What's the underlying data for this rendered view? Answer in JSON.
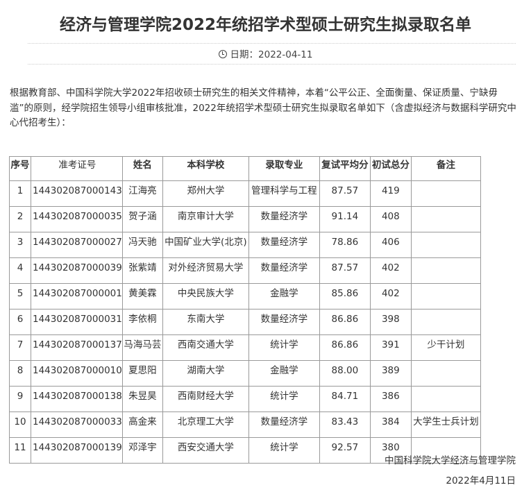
{
  "title": "经济与管理学院2022年统招学术型硕士研究生拟录取名单",
  "date_label": "日期：",
  "date": "2022-04-11",
  "intro": "根据教育部、中国科学院大学2022年招收硕士研究生的相关文件精神，本着“公平公正、全面衡量、保证质量、宁缺毋滥”的原则，经学院招生领导小组审核批准，2022年统招学术型硕士研究生拟录取名单如下（含虚拟经济与数据科学研究中心代招考生）：",
  "table": {
    "headers": [
      "序号",
      "准考证号",
      "姓名",
      "本科学校",
      "录取专业",
      "复试平均分",
      "初试总分",
      "备注"
    ],
    "rows": [
      [
        "1",
        "144302087000143",
        "江海亮",
        "郑州大学",
        "管理科学与工程",
        "87.57",
        "419",
        ""
      ],
      [
        "2",
        "144302087000035",
        "贺子涵",
        "南京审计大学",
        "数量经济学",
        "91.14",
        "408",
        ""
      ],
      [
        "3",
        "144302087000027",
        "冯天驰",
        "中国矿业大学(北京)",
        "数量经济学",
        "78.86",
        "406",
        ""
      ],
      [
        "4",
        "144302087000039",
        "张紫靖",
        "对外经济贸易大学",
        "数量经济学",
        "87.57",
        "402",
        ""
      ],
      [
        "5",
        "144302087000001",
        "黄美霖",
        "中央民族大学",
        "金融学",
        "85.86",
        "402",
        ""
      ],
      [
        "6",
        "144302087000031",
        "李依桐",
        "东南大学",
        "数量经济学",
        "86.86",
        "398",
        ""
      ],
      [
        "7",
        "144302087000137",
        "马海马芸",
        "西南交通大学",
        "统计学",
        "86.86",
        "391",
        "少干计划"
      ],
      [
        "8",
        "144302087000010",
        "夏思阳",
        "湖南大学",
        "金融学",
        "88.00",
        "389",
        ""
      ],
      [
        "9",
        "144302087000138",
        "朱昱昊",
        "西南财经大学",
        "统计学",
        "84.71",
        "386",
        ""
      ],
      [
        "10",
        "144302087000033",
        "高金来",
        "北京理工大学",
        "数量经济学",
        "83.43",
        "384",
        "大学生士兵计划"
      ],
      [
        "11",
        "144302087000139",
        "邓泽宇",
        "西安交通大学",
        "统计学",
        "92.57",
        "380",
        ""
      ]
    ]
  },
  "footer": {
    "org": "中国科学院大学经济与管理学院",
    "date": "2022年4月11日"
  }
}
